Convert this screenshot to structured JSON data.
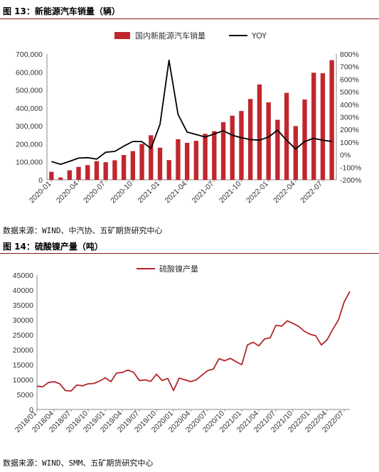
{
  "figure1": {
    "title": "图 13：新能源汽车销量（辆）",
    "source": "数据来源：WIND、中汽协、五矿期货研究中心"
  },
  "figure2": {
    "title": "图 14：硫酸镍产量（吨）",
    "source": "数据来源：WIND、SMM、五矿期货研究中心"
  },
  "colors": {
    "bar": "#c0272d",
    "line_black": "#000000",
    "line_red": "#b3262c",
    "rule": "#8a1a1a"
  },
  "chart_data": [
    {
      "type": "bar",
      "title": "",
      "xlabel": "",
      "ylabel": "",
      "ylim": [
        0,
        700000
      ],
      "y2lim": [
        -200,
        800
      ],
      "legend_placement": "top",
      "grid": false,
      "yticks": [
        "0",
        "100,000",
        "200,000",
        "300,000",
        "400,000",
        "500,000",
        "600,000",
        "700,000"
      ],
      "y2ticks": [
        "-200%",
        "-100%",
        "0%",
        "100%",
        "200%",
        "300%",
        "400%",
        "500%",
        "600%",
        "700%",
        "800%"
      ],
      "xticks": [
        "2020-01",
        "2020-04",
        "2020-07",
        "2020-10",
        "2021-01",
        "2021-04",
        "2021-07",
        "2021-10",
        "2022-01",
        "2022-04",
        "2022-07"
      ],
      "categories": [
        "2020-01",
        "2020-02",
        "2020-03",
        "2020-04",
        "2020-05",
        "2020-06",
        "2020-07",
        "2020-08",
        "2020-09",
        "2020-10",
        "2020-11",
        "2020-12",
        "2021-01",
        "2021-02",
        "2021-03",
        "2021-04",
        "2021-05",
        "2021-06",
        "2021-07",
        "2021-08",
        "2021-09",
        "2021-10",
        "2021-11",
        "2021-12",
        "2022-01",
        "2022-02",
        "2022-03",
        "2022-04",
        "2022-05",
        "2022-06",
        "2022-07",
        "2022-08"
      ],
      "series": [
        {
          "name": "国内新能源汽车销量",
          "axis": "left",
          "kind": "bar",
          "values": [
            45000,
            13000,
            53000,
            72000,
            82000,
            104000,
            98000,
            109000,
            138000,
            160000,
            200000,
            248000,
            179000,
            110000,
            226000,
            206000,
            217000,
            256000,
            271000,
            321000,
            357000,
            383000,
            450000,
            531000,
            431000,
            334000,
            484000,
            299000,
            447000,
            596000,
            593000,
            666000
          ]
        },
        {
          "name": "YOY",
          "axis": "right",
          "kind": "line",
          "values": [
            -54,
            -76,
            -53,
            -27,
            -24,
            -35,
            20,
            26,
            68,
            105,
            104,
            50,
            240,
            750,
            320,
            180,
            160,
            140,
            165,
            190,
            155,
            135,
            120,
            115,
            140,
            195,
            115,
            45,
            105,
            130,
            115,
            105
          ]
        }
      ]
    },
    {
      "type": "line",
      "title": "",
      "xlabel": "",
      "ylabel": "",
      "ylim": [
        0,
        45000
      ],
      "legend_placement": "top",
      "grid": false,
      "yticks": [
        "0",
        "5000",
        "10000",
        "15000",
        "20000",
        "25000",
        "30000",
        "35000",
        "40000",
        "45000"
      ],
      "xticks": [
        "2018/01",
        "2018/04",
        "2018/07",
        "2018/10",
        "2019/01",
        "2019/04",
        "2019/07",
        "2019/10",
        "2020/01",
        "2020/04",
        "2020/07",
        "2020/10",
        "2021/01",
        "2021/04",
        "2021/07",
        "2021/10",
        "2022/01",
        "2022/04",
        "2022/07"
      ],
      "series": [
        {
          "name": "硫酸镍产量",
          "values": [
            7800,
            7600,
            9000,
            9300,
            8600,
            6300,
            6200,
            8200,
            7900,
            8600,
            8700,
            9500,
            10600,
            9300,
            12200,
            12400,
            13200,
            12400,
            9700,
            9900,
            9400,
            11800,
            9700,
            10400,
            6300,
            10500,
            9900,
            9300,
            9900,
            11500,
            13000,
            13500,
            17000,
            16300,
            17100,
            16000,
            15000,
            21600,
            22500,
            21300,
            23600,
            24000,
            28200,
            27900,
            29700,
            28800,
            27800,
            26200,
            25200,
            24700,
            21600,
            23300,
            26800,
            30000,
            36000,
            39500
          ]
        }
      ]
    }
  ]
}
